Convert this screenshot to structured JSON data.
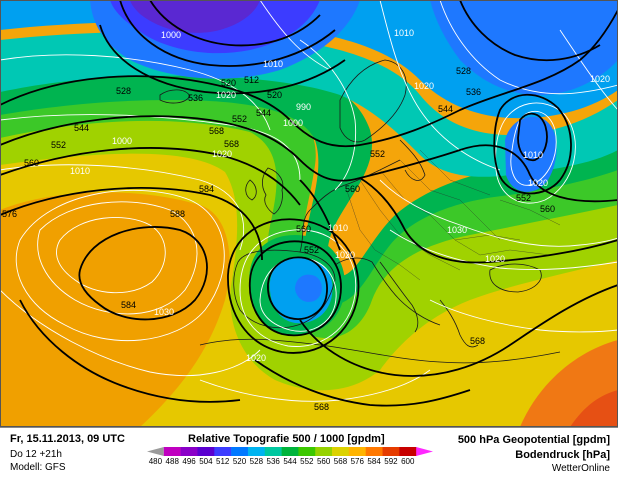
{
  "footer": {
    "date": "Fr, 15.11.2013, 09 UTC",
    "run": "Do 12 +21h",
    "model": "Modell: GFS",
    "product": "Relative Topografie 500 / 1000 [gpdm]",
    "geopotential": "500 hPa Geopotential [gpdm]",
    "pressure": "Bodendruck [hPa]",
    "brand": "WetterOnline"
  },
  "legend": {
    "ticks": [
      "480",
      "488",
      "496",
      "504",
      "512",
      "520",
      "528",
      "536",
      "544",
      "552",
      "560",
      "568",
      "576",
      "584",
      "592",
      "600"
    ],
    "colors": [
      "#9b9b9b",
      "#c000c0",
      "#8a00c8",
      "#5a00d0",
      "#3c3cff",
      "#0078ff",
      "#00b4f0",
      "#00c8a0",
      "#00b43c",
      "#3cc800",
      "#96d200",
      "#dcd200",
      "#ffb400",
      "#ff7800",
      "#e63c00",
      "#c80000",
      "#ff28ff"
    ]
  },
  "map_labels": {
    "geopotential": [
      {
        "text": "528"
      },
      {
        "text": "536"
      },
      {
        "text": "544"
      },
      {
        "text": "552"
      },
      {
        "text": "560"
      },
      {
        "text": "568"
      },
      {
        "text": "584"
      },
      {
        "text": "576"
      },
      {
        "text": "588"
      },
      {
        "text": "584"
      },
      {
        "text": "568"
      },
      {
        "text": "560"
      },
      {
        "text": "552"
      },
      {
        "text": "544"
      },
      {
        "text": "536"
      },
      {
        "text": "528"
      },
      {
        "text": "552"
      },
      {
        "text": "560"
      },
      {
        "text": "552"
      },
      {
        "text": "560"
      },
      {
        "text": "568"
      },
      {
        "text": "568"
      },
      {
        "text": "512"
      },
      {
        "text": "520"
      },
      {
        "text": "520"
      },
      {
        "text": "544"
      },
      {
        "text": "552"
      }
    ],
    "pressure": [
      {
        "text": "1000"
      },
      {
        "text": "1010"
      },
      {
        "text": "1020"
      },
      {
        "text": "1010"
      },
      {
        "text": "1000"
      },
      {
        "text": "1010"
      },
      {
        "text": "1020"
      },
      {
        "text": "1020"
      },
      {
        "text": "1010"
      },
      {
        "text": "1020"
      },
      {
        "text": "1030"
      },
      {
        "text": "1020"
      },
      {
        "text": "1020"
      },
      {
        "text": "1020"
      },
      {
        "text": "1020"
      },
      {
        "text": "1010"
      },
      {
        "text": "990"
      },
      {
        "text": "1000"
      },
      {
        "text": "1030"
      }
    ]
  }
}
